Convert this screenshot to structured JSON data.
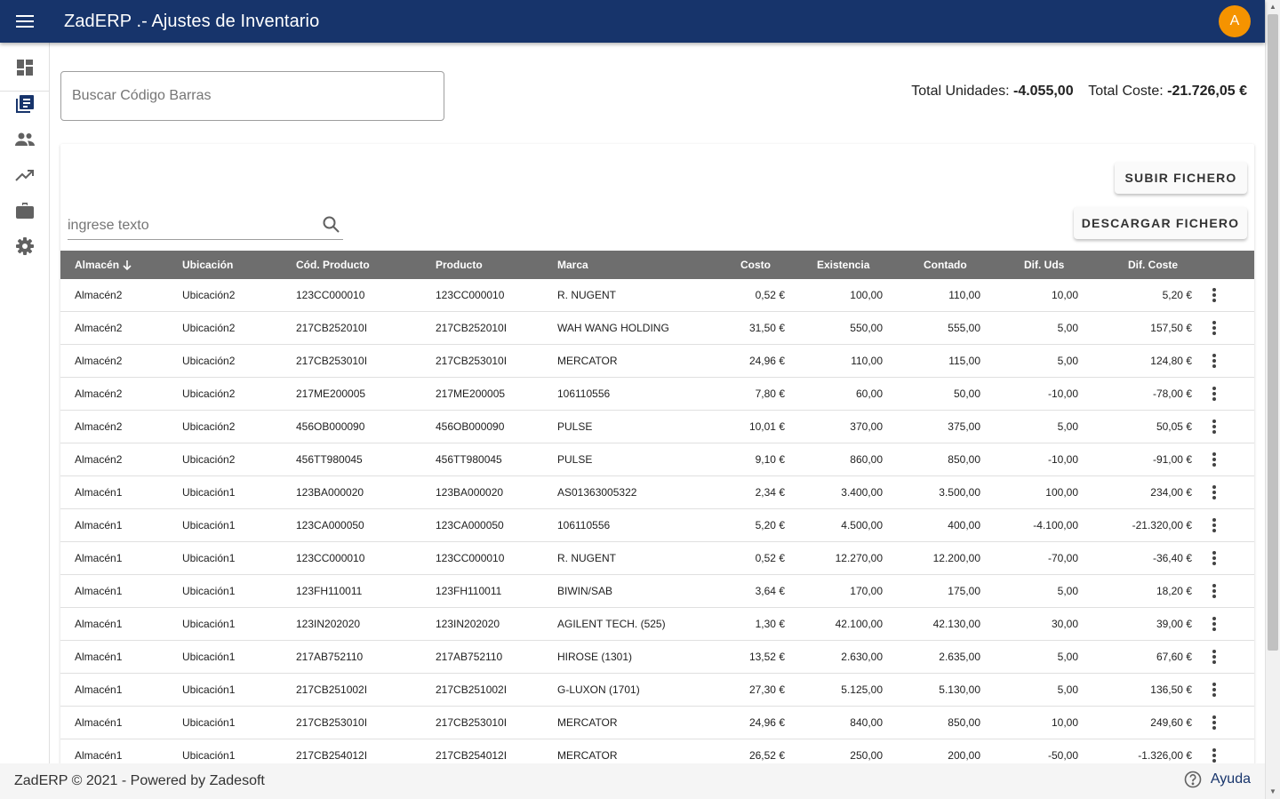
{
  "app": {
    "title": "ZadERP .- Ajustes de Inventario",
    "avatar_letter": "A",
    "header_color": "#17346b",
    "avatar_color": "#f59300"
  },
  "sidebar": {
    "items": [
      {
        "icon": "dashboard-icon"
      },
      {
        "icon": "library-books-icon"
      },
      {
        "icon": "people-icon"
      },
      {
        "icon": "trending-up-icon"
      },
      {
        "icon": "briefcase-icon"
      },
      {
        "icon": "settings-icon"
      }
    ]
  },
  "search": {
    "placeholder": "Buscar Código Barras",
    "value": ""
  },
  "totals": {
    "units_label": "Total Unidades:",
    "units_value": "-4.055,00",
    "cost_label": "Total Coste:",
    "cost_value": "-21.726,05 €"
  },
  "actions": {
    "upload_label": "SUBIR FICHERO",
    "download_label": "DESCARGAR FICHERO"
  },
  "filter": {
    "placeholder": "ingrese texto",
    "value": ""
  },
  "table": {
    "header_color": "#6e6e6e",
    "columns": {
      "almacen": "Almacén",
      "ubicacion": "Ubicación",
      "cod_producto": "Cód. Producto",
      "producto": "Producto",
      "marca": "Marca",
      "costo": "Costo",
      "existencia": "Existencia",
      "contado": "Contado",
      "dif_uds": "Dif. Uds",
      "dif_coste": "Dif. Coste"
    },
    "sort": {
      "column": "almacen",
      "direction": "descending"
    },
    "rows": [
      [
        "Almacén2",
        "Ubicación2",
        "123CC000010",
        "123CC000010",
        "R. NUGENT",
        "0,52 €",
        "100,00",
        "110,00",
        "10,00",
        "5,20 €"
      ],
      [
        "Almacén2",
        "Ubicación2",
        "217CB252010I",
        "217CB252010I",
        "WAH WANG HOLDING",
        "31,50 €",
        "550,00",
        "555,00",
        "5,00",
        "157,50 €"
      ],
      [
        "Almacén2",
        "Ubicación2",
        "217CB253010I",
        "217CB253010I",
        "MERCATOR",
        "24,96 €",
        "110,00",
        "115,00",
        "5,00",
        "124,80 €"
      ],
      [
        "Almacén2",
        "Ubicación2",
        "217ME200005",
        "217ME200005",
        "106110556",
        "7,80 €",
        "60,00",
        "50,00",
        "-10,00",
        "-78,00 €"
      ],
      [
        "Almacén2",
        "Ubicación2",
        "456OB000090",
        "456OB000090",
        "PULSE",
        "10,01 €",
        "370,00",
        "375,00",
        "5,00",
        "50,05 €"
      ],
      [
        "Almacén2",
        "Ubicación2",
        "456TT980045",
        "456TT980045",
        "PULSE",
        "9,10 €",
        "860,00",
        "850,00",
        "-10,00",
        "-91,00 €"
      ],
      [
        "Almacén1",
        "Ubicación1",
        "123BA000020",
        "123BA000020",
        "AS01363005322",
        "2,34 €",
        "3.400,00",
        "3.500,00",
        "100,00",
        "234,00 €"
      ],
      [
        "Almacén1",
        "Ubicación1",
        "123CA000050",
        "123CA000050",
        "106110556",
        "5,20 €",
        "4.500,00",
        "400,00",
        "-4.100,00",
        "-21.320,00 €"
      ],
      [
        "Almacén1",
        "Ubicación1",
        "123CC000010",
        "123CC000010",
        "R. NUGENT",
        "0,52 €",
        "12.270,00",
        "12.200,00",
        "-70,00",
        "-36,40 €"
      ],
      [
        "Almacén1",
        "Ubicación1",
        "123FH110011",
        "123FH110011",
        "BIWIN/SAB",
        "3,64 €",
        "170,00",
        "175,00",
        "5,00",
        "18,20 €"
      ],
      [
        "Almacén1",
        "Ubicación1",
        "123IN202020",
        "123IN202020",
        "AGILENT TECH. (525)",
        "1,30 €",
        "42.100,00",
        "42.130,00",
        "30,00",
        "39,00 €"
      ],
      [
        "Almacén1",
        "Ubicación1",
        "217AB752110",
        "217AB752110",
        "HIROSE (1301)",
        "13,52 €",
        "2.630,00",
        "2.635,00",
        "5,00",
        "67,60 €"
      ],
      [
        "Almacén1",
        "Ubicación1",
        "217CB251002I",
        "217CB251002I",
        "G-LUXON (1701)",
        "27,30 €",
        "5.125,00",
        "5.130,00",
        "5,00",
        "136,50 €"
      ],
      [
        "Almacén1",
        "Ubicación1",
        "217CB253010I",
        "217CB253010I",
        "MERCATOR",
        "24,96 €",
        "840,00",
        "850,00",
        "10,00",
        "249,60 €"
      ],
      [
        "Almacén1",
        "Ubicación1",
        "217CB254012I",
        "217CB254012I",
        "MERCATOR",
        "26,52 €",
        "250,00",
        "200,00",
        "-50,00",
        "-1.326,00 €"
      ]
    ]
  },
  "footer": {
    "text": "ZadERP © 2021 - Powered by Zadesoft",
    "help_label": "Ayuda"
  }
}
